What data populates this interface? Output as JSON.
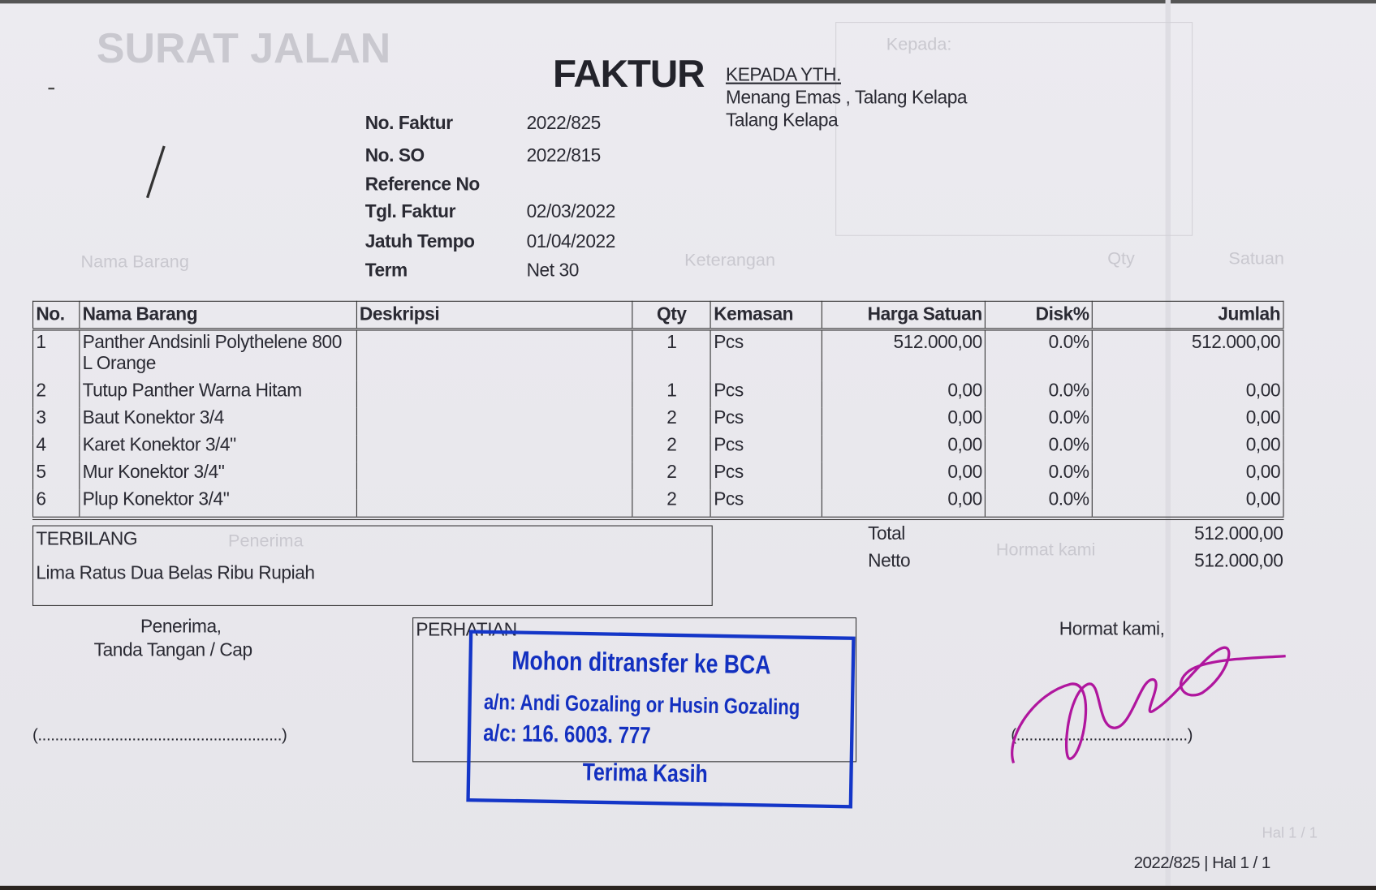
{
  "title": "FAKTUR",
  "recipient": {
    "label": "KEPADA YTH.",
    "line1": "Menang Emas , Talang Kelapa",
    "line2": "Talang Kelapa"
  },
  "info": [
    {
      "label": "No. Faktur",
      "value": "2022/825"
    },
    {
      "label": "No. SO",
      "value": "2022/815"
    },
    {
      "label": "Reference No",
      "value": ""
    },
    {
      "label": "Tgl. Faktur",
      "value": "02/03/2022"
    },
    {
      "label": "Jatuh Tempo",
      "value": "01/04/2022"
    },
    {
      "label": "Term",
      "value": "Net 30"
    }
  ],
  "table": {
    "headers": [
      "No.",
      "Nama Barang",
      "Deskripsi",
      "Qty",
      "Kemasan",
      "Harga Satuan",
      "Disk%",
      "Jumlah"
    ],
    "rows": [
      {
        "no": "1",
        "nama": "Panther Andsinli Polythelene 800 L Orange",
        "deskripsi": "",
        "qty": "1",
        "kemasan": "Pcs",
        "harga": "512.000,00",
        "disk": "0.0%",
        "jumlah": "512.000,00"
      },
      {
        "no": "2",
        "nama": "Tutup Panther Warna Hitam",
        "deskripsi": "",
        "qty": "1",
        "kemasan": "Pcs",
        "harga": "0,00",
        "disk": "0.0%",
        "jumlah": "0,00"
      },
      {
        "no": "3",
        "nama": "Baut Konektor 3/4",
        "deskripsi": "",
        "qty": "2",
        "kemasan": "Pcs",
        "harga": "0,00",
        "disk": "0.0%",
        "jumlah": "0,00"
      },
      {
        "no": "4",
        "nama": "Karet Konektor 3/4\"",
        "deskripsi": "",
        "qty": "2",
        "kemasan": "Pcs",
        "harga": "0,00",
        "disk": "0.0%",
        "jumlah": "0,00"
      },
      {
        "no": "5",
        "nama": "Mur Konektor 3/4\"",
        "deskripsi": "",
        "qty": "2",
        "kemasan": "Pcs",
        "harga": "0,00",
        "disk": "0.0%",
        "jumlah": "0,00"
      },
      {
        "no": "6",
        "nama": "Plup Konektor 3/4\"",
        "deskripsi": "",
        "qty": "2",
        "kemasan": "Pcs",
        "harga": "0,00",
        "disk": "0.0%",
        "jumlah": "0,00"
      }
    ]
  },
  "terbilang": {
    "label": "TERBILANG",
    "value": "Lima Ratus Dua Belas Ribu Rupiah"
  },
  "totals": {
    "total_label": "Total",
    "total_value": "512.000,00",
    "netto_label": "Netto",
    "netto_value": "512.000,00"
  },
  "receiver": {
    "line1": "Penerima,",
    "line2": "Tanda Tangan / Cap",
    "sign_line": "(.........................................................)"
  },
  "perhatian": {
    "label": "PERHATIAN"
  },
  "stamp": {
    "line1": "Mohon ditransfer ke BCA",
    "line2": "a/n: Andi Gozaling or Husin Gozaling",
    "line3": "a/c: 116. 6003. 777",
    "line4": "Terima Kasih",
    "color": "#1436c8"
  },
  "sender": {
    "label": "Hormat kami,",
    "sign_line": "(........................................)",
    "signature_color": "#b0169e"
  },
  "footer": "2022/825 | Hal 1 / 1",
  "show_through": [
    "SURAT JALAN",
    "Kepada:",
    "Nama Barang",
    "Keterangan",
    "Qty",
    "Satuan",
    "Penerima",
    "Hormat kami",
    "Hal 1 / 1"
  ]
}
